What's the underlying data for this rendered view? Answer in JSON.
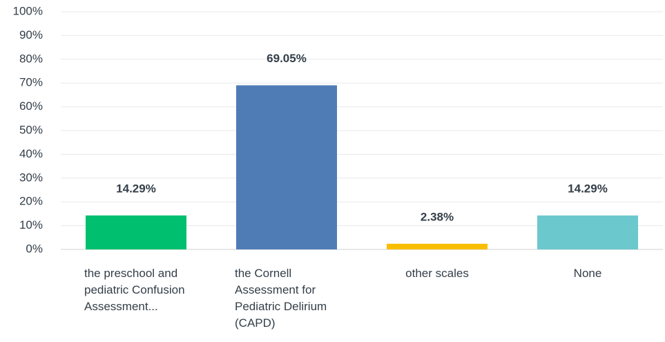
{
  "chart_data": {
    "type": "bar",
    "categories": [
      "the preschool and pediatric Confusion Assessment...",
      "the Cornell Assessment for Pediatric Delirium (CAPD)",
      "other scales",
      "None"
    ],
    "values": [
      14.29,
      69.05,
      2.38,
      14.29
    ],
    "value_labels": [
      "14.29%",
      "69.05%",
      "2.38%",
      "14.29%"
    ],
    "colors": [
      "#00bf6f",
      "#507cb6",
      "#f9be00",
      "#6bc8cd"
    ],
    "ylim": [
      0,
      100
    ],
    "yticks": [
      {
        "value": 0,
        "label": "0%"
      },
      {
        "value": 10,
        "label": "10%"
      },
      {
        "value": 20,
        "label": "20%"
      },
      {
        "value": 30,
        "label": "30%"
      },
      {
        "value": 40,
        "label": "40%"
      },
      {
        "value": 50,
        "label": "50%"
      },
      {
        "value": 60,
        "label": "60%"
      },
      {
        "value": 70,
        "label": "70%"
      },
      {
        "value": 80,
        "label": "80%"
      },
      {
        "value": 90,
        "label": "90%"
      },
      {
        "value": 100,
        "label": "100%"
      }
    ],
    "grid": true
  }
}
